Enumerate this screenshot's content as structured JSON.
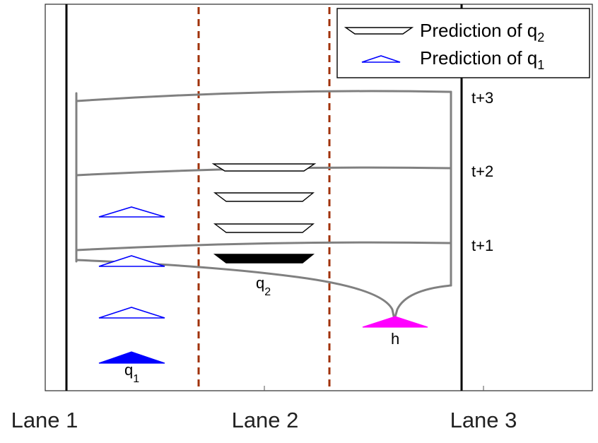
{
  "lanes": [
    {
      "label": "Lane 1"
    },
    {
      "label": "Lane 2"
    },
    {
      "label": "Lane 3"
    }
  ],
  "time_steps": [
    {
      "label": "t+3"
    },
    {
      "label": "t+2"
    },
    {
      "label": "t+1"
    }
  ],
  "vehicles": {
    "q1": {
      "base": "q",
      "sub": "1"
    },
    "q2": {
      "base": "q",
      "sub": "2"
    },
    "h": {
      "label": "h"
    }
  },
  "legend": {
    "q2": {
      "prefix": "Prediction of q",
      "sub": "2"
    },
    "q1": {
      "prefix": "Prediction of q",
      "sub": "1"
    }
  },
  "colors": {
    "lane_boundary": "#000000",
    "lane_divider": "#a0320a",
    "tree": "#808080",
    "q1": "#0000ff",
    "q2": "#000000",
    "h": "#ff00ff"
  }
}
